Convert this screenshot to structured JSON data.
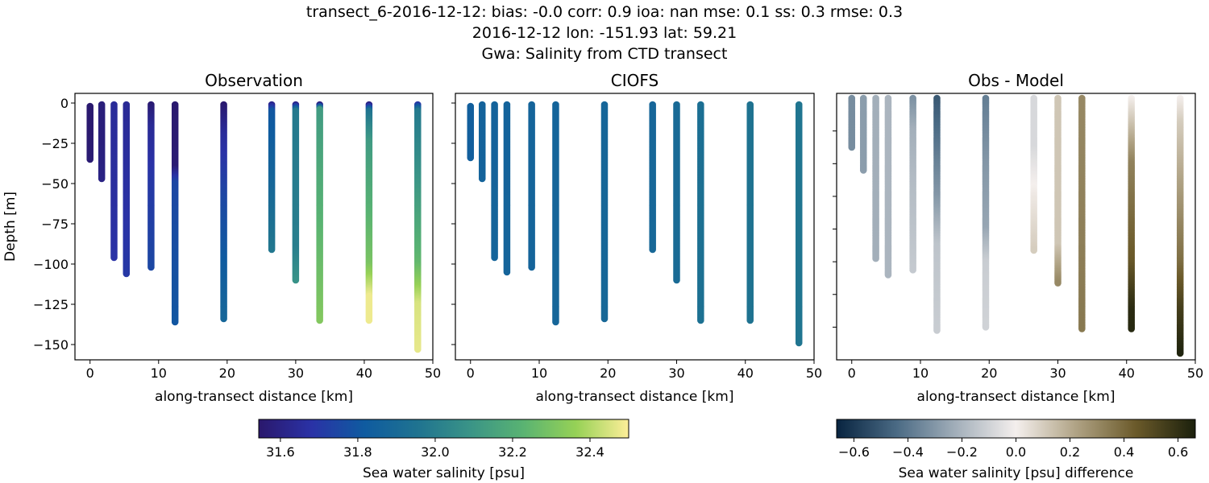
{
  "title_lines": [
    "transect_6-2016-12-12: bias: -0.0  corr: 0.9  ioa: nan  mse: 0.1  ss: 0.3  rmse: 0.3",
    "2016-12-12 lon: -151.93 lat: 59.21",
    "Gwa: Salinity from CTD transect"
  ],
  "chart_data": [
    {
      "type": "scatter",
      "title": "Observation",
      "xlabel": "along-transect distance [km]",
      "ylabel": "Depth [m]",
      "xlim": [
        -2.2,
        50
      ],
      "ylim": [
        -159.5,
        6
      ],
      "xticks": [
        0,
        10,
        20,
        30,
        40,
        50
      ],
      "yticks": [
        0,
        -25,
        -50,
        -75,
        -100,
        -125,
        -150
      ],
      "show_ytick_labels": true,
      "colormap": "salinity",
      "profiles": [
        {
          "x": 0,
          "depth": [
            -2,
            -18,
            -35
          ],
          "value": [
            31.55,
            31.55,
            31.56
          ]
        },
        {
          "x": 1.7,
          "depth": [
            -1,
            -24,
            -47
          ],
          "value": [
            31.58,
            31.58,
            31.6
          ]
        },
        {
          "x": 3.5,
          "depth": [
            -1,
            -48,
            -96
          ],
          "value": [
            31.65,
            31.66,
            31.68
          ]
        },
        {
          "x": 5.3,
          "depth": [
            -1,
            -53,
            -106
          ],
          "value": [
            31.64,
            31.67,
            31.7
          ]
        },
        {
          "x": 8.9,
          "depth": [
            -1,
            -15,
            -50,
            -102
          ],
          "value": [
            31.56,
            31.64,
            31.7,
            31.75
          ]
        },
        {
          "x": 12.4,
          "depth": [
            -1,
            -40,
            -50,
            -136
          ],
          "value": [
            31.55,
            31.56,
            31.75,
            31.8
          ]
        },
        {
          "x": 19.5,
          "depth": [
            -1,
            -20,
            -60,
            -134
          ],
          "value": [
            31.55,
            31.65,
            31.75,
            31.88
          ]
        },
        {
          "x": 26.5,
          "depth": [
            -1,
            -5,
            -45,
            -91
          ],
          "value": [
            31.62,
            31.8,
            31.87,
            31.97
          ]
        },
        {
          "x": 30.0,
          "depth": [
            -1,
            -5,
            -90,
            -110
          ],
          "value": [
            31.62,
            31.98,
            32.0,
            32.08
          ]
        },
        {
          "x": 33.5,
          "depth": [
            -1,
            -4,
            -70,
            -135
          ],
          "value": [
            31.6,
            32.12,
            32.22,
            32.32
          ]
        },
        {
          "x": 40.7,
          "depth": [
            -1,
            -5,
            -25,
            -100,
            -120,
            -135
          ],
          "value": [
            31.6,
            31.95,
            32.12,
            32.3,
            32.48,
            32.48
          ]
        },
        {
          "x": 47.8,
          "depth": [
            -1,
            -5,
            -50,
            -100,
            -125,
            -153
          ],
          "value": [
            31.7,
            31.98,
            32.1,
            32.25,
            32.45,
            32.47
          ]
        }
      ]
    },
    {
      "type": "scatter",
      "title": "CIOFS",
      "xlabel": "along-transect distance [km]",
      "xlim": [
        -2.2,
        50
      ],
      "ylim": [
        -159.5,
        6
      ],
      "xticks": [
        0,
        10,
        20,
        30,
        40,
        50
      ],
      "yticks": [
        0,
        -25,
        -50,
        -75,
        -100,
        -125,
        -150
      ],
      "show_ytick_labels": false,
      "colormap": "salinity",
      "profiles": [
        {
          "x": 0,
          "depth": [
            -2,
            -34
          ],
          "value": [
            31.84,
            31.84
          ]
        },
        {
          "x": 1.7,
          "depth": [
            -1,
            -47
          ],
          "value": [
            31.86,
            31.86
          ]
        },
        {
          "x": 3.5,
          "depth": [
            -1,
            -96
          ],
          "value": [
            31.86,
            31.87
          ]
        },
        {
          "x": 5.3,
          "depth": [
            -1,
            -105
          ],
          "value": [
            31.86,
            31.87
          ]
        },
        {
          "x": 8.9,
          "depth": [
            -1,
            -102
          ],
          "value": [
            31.87,
            31.87
          ]
        },
        {
          "x": 12.4,
          "depth": [
            -1,
            -136
          ],
          "value": [
            31.87,
            31.88
          ]
        },
        {
          "x": 19.5,
          "depth": [
            -1,
            -134
          ],
          "value": [
            31.88,
            31.89
          ]
        },
        {
          "x": 26.5,
          "depth": [
            -1,
            -91
          ],
          "value": [
            31.88,
            31.89
          ]
        },
        {
          "x": 30.0,
          "depth": [
            -1,
            -110
          ],
          "value": [
            31.9,
            31.91
          ]
        },
        {
          "x": 33.5,
          "depth": [
            -1,
            -135
          ],
          "value": [
            31.93,
            31.94
          ]
        },
        {
          "x": 40.7,
          "depth": [
            -1,
            -135
          ],
          "value": [
            31.95,
            31.95
          ]
        },
        {
          "x": 47.8,
          "depth": [
            -1,
            -149
          ],
          "value": [
            31.96,
            31.96
          ]
        }
      ]
    },
    {
      "type": "scatter",
      "title": "Obs - Model",
      "xlabel": "along-transect distance [km]",
      "xlim": [
        -2.2,
        50
      ],
      "ylim": [
        -160,
        3
      ],
      "xticks": [
        0,
        10,
        20,
        30,
        40,
        50
      ],
      "yticks": [
        -20,
        -40,
        -60,
        -80,
        -100,
        -120,
        -140
      ],
      "show_ytick_labels": false,
      "colormap": "difference",
      "profiles": [
        {
          "x": 0,
          "depth": [
            0,
            -30
          ],
          "value": [
            -0.33,
            -0.33
          ]
        },
        {
          "x": 1.7,
          "depth": [
            0,
            -44
          ],
          "value": [
            -0.28,
            -0.28
          ]
        },
        {
          "x": 3.5,
          "depth": [
            0,
            -98
          ],
          "value": [
            -0.22,
            -0.22
          ]
        },
        {
          "x": 5.3,
          "depth": [
            0,
            -108
          ],
          "value": [
            -0.2,
            -0.2
          ]
        },
        {
          "x": 8.9,
          "depth": [
            0,
            -20,
            -50,
            -105
          ],
          "value": [
            -0.32,
            -0.22,
            -0.18,
            -0.13
          ]
        },
        {
          "x": 12.4,
          "depth": [
            0,
            -30,
            -60,
            -90,
            -142
          ],
          "value": [
            -0.5,
            -0.4,
            -0.3,
            -0.15,
            -0.12
          ]
        },
        {
          "x": 19.5,
          "depth": [
            0,
            -40,
            -80,
            -100,
            -140
          ],
          "value": [
            -0.38,
            -0.3,
            -0.25,
            -0.12,
            -0.1
          ]
        },
        {
          "x": 26.5,
          "depth": [
            0,
            -30,
            -60,
            -93
          ],
          "value": [
            -0.08,
            -0.08,
            0.02,
            0.1
          ]
        },
        {
          "x": 30.0,
          "depth": [
            0,
            -90,
            -113
          ],
          "value": [
            0.12,
            0.12,
            0.3
          ]
        },
        {
          "x": 33.5,
          "depth": [
            0,
            -141
          ],
          "value": [
            0.3,
            0.35
          ]
        },
        {
          "x": 40.7,
          "depth": [
            0,
            -15,
            -40,
            -100,
            -130,
            -141
          ],
          "value": [
            0.0,
            0.12,
            0.32,
            0.45,
            0.62,
            0.63
          ]
        },
        {
          "x": 47.8,
          "depth": [
            0,
            -15,
            -60,
            -100,
            -130,
            -156
          ],
          "value": [
            0.0,
            0.1,
            0.25,
            0.38,
            0.55,
            0.65
          ]
        }
      ]
    }
  ],
  "colorbars": {
    "salinity": {
      "label": "Sea water salinity [psu]",
      "range": [
        31.544,
        32.5
      ],
      "ticks": [
        "31.6",
        "31.8",
        "32.0",
        "32.2",
        "32.4"
      ],
      "stops": [
        "#2a186c",
        "#2a32a6",
        "#0f5ba0",
        "#1f7390",
        "#3a9487",
        "#59b372",
        "#96d156",
        "#fdee99"
      ]
    },
    "difference": {
      "label": "Sea water salinity [psu] difference",
      "range": [
        -0.664,
        0.664
      ],
      "ticks": [
        "−0.6",
        "−0.4",
        "−0.2",
        "0.0",
        "0.2",
        "0.4",
        "0.6"
      ],
      "stops": [
        "#082440",
        "#4a6a84",
        "#a3afba",
        "#f4efed",
        "#b0a385",
        "#6b5a2a",
        "#1b200c"
      ]
    }
  }
}
